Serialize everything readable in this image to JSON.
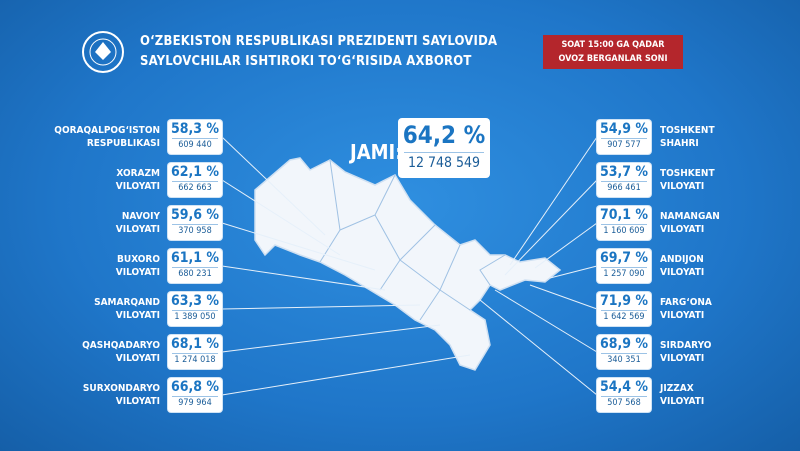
{
  "header": {
    "title": [
      "O‘ZBEKISTON RESPUBLIKASI PREZIDENTI SAYLOVIDA",
      "SAYLOVCHILAR ISHTIROKI TO‘G‘RISIDA AXBOROT"
    ],
    "badge": [
      "SOAT 15:00 GA QADAR",
      "OVOZ BERGANLAR SONI"
    ]
  },
  "total": {
    "label": "JAMI:",
    "percent": "64,2 %",
    "count": "12 748 549"
  },
  "left_regions": [
    {
      "name": [
        "QORAQALPOG‘ISTON",
        "RESPUBLIKASI"
      ],
      "percent": "58,3 %",
      "count": "609 440"
    },
    {
      "name": [
        "XORAZM",
        "VILOYATI"
      ],
      "percent": "62,1 %",
      "count": "662 663"
    },
    {
      "name": [
        "NAVOIY",
        "VILOYATI"
      ],
      "percent": "59,6 %",
      "count": "370 958"
    },
    {
      "name": [
        "BUXORO",
        "VILOYATI"
      ],
      "percent": "61,1 %",
      "count": "680 231"
    },
    {
      "name": [
        "SAMARQAND",
        "VILOYATI"
      ],
      "percent": "63,3 %",
      "count": "1 389 050"
    },
    {
      "name": [
        "QASHQADARYO",
        "VILOYATI"
      ],
      "percent": "68,1 %",
      "count": "1 274 018"
    },
    {
      "name": [
        "SURXONDARYO",
        "VILOYATI"
      ],
      "percent": "66,8 %",
      "count": "979 964"
    }
  ],
  "right_regions": [
    {
      "name": [
        "TOSHKENT",
        "SHAHRI"
      ],
      "percent": "54,9 %",
      "count": "907 577"
    },
    {
      "name": [
        "TOSHKENT",
        "VILOYATI"
      ],
      "percent": "53,7 %",
      "count": "966 461"
    },
    {
      "name": [
        "NAMANGAN",
        "VILOYATI"
      ],
      "percent": "70,1 %",
      "count": "1 160 609"
    },
    {
      "name": [
        "ANDIJON",
        "VILOYATI"
      ],
      "percent": "69,7 %",
      "count": "1 257 090"
    },
    {
      "name": [
        "FARG‘ONA",
        "VILOYATI"
      ],
      "percent": "71,9 %",
      "count": "1 642 569"
    },
    {
      "name": [
        "SIRDARYO",
        "VILOYATI"
      ],
      "percent": "68,9 %",
      "count": "340 351"
    },
    {
      "name": [
        "JIZZAX",
        "VILOYATI"
      ],
      "percent": "54,4 %",
      "count": "507 568"
    }
  ]
}
